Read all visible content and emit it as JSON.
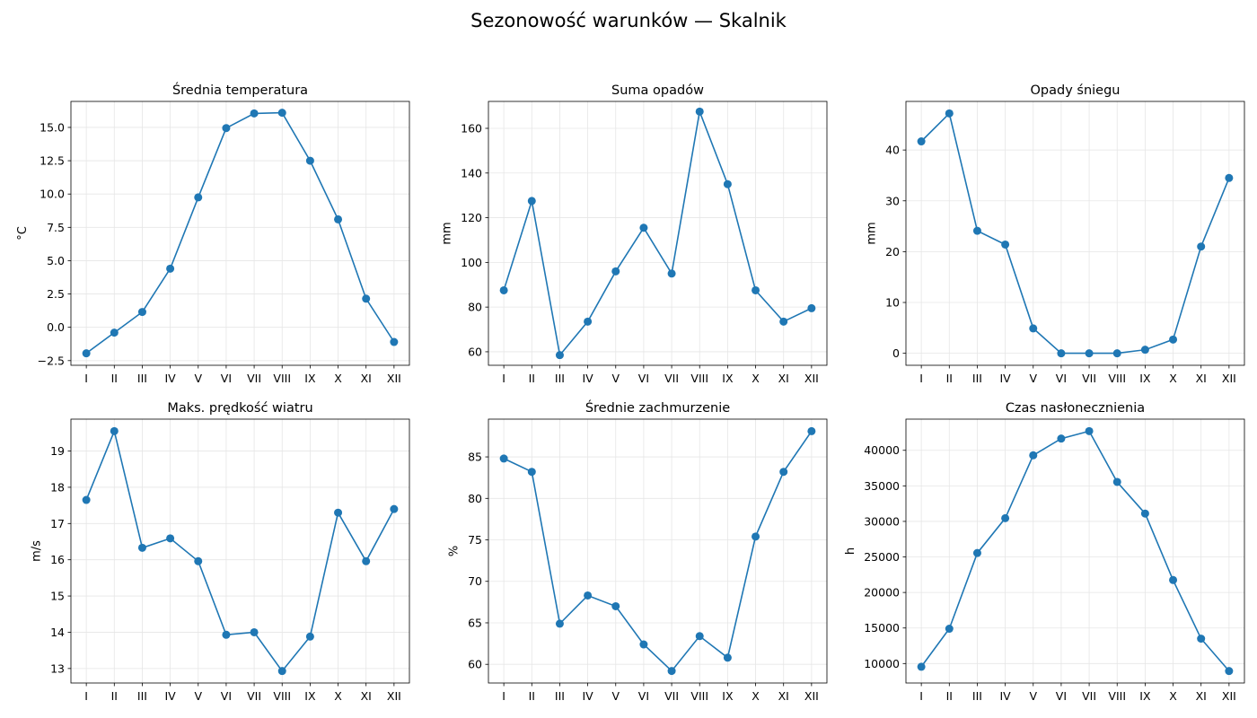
{
  "figure": {
    "title": "Sezonowość warunków — Skalnik"
  },
  "style": {
    "line_color": "#1f77b4",
    "grid_color": "#e6e6e6"
  },
  "chart_data": [
    {
      "type": "line",
      "title": "Średnia temperatura",
      "xlabel": "",
      "ylabel": "°C",
      "categories": [
        "I",
        "II",
        "III",
        "IV",
        "V",
        "VI",
        "VII",
        "VIII",
        "IX",
        "X",
        "XI",
        "XII"
      ],
      "values": [
        -1.95,
        -0.4,
        1.15,
        4.4,
        9.75,
        14.95,
        16.05,
        16.1,
        12.5,
        8.1,
        2.15,
        -1.1
      ],
      "ylim": [
        -2.85,
        16.95
      ],
      "yticks": [
        -2.5,
        0.0,
        2.5,
        5.0,
        7.5,
        10.0,
        12.5,
        15.0
      ],
      "ytick_labels": [
        "−2.5",
        "0.0",
        "2.5",
        "5.0",
        "7.5",
        "10.0",
        "12.5",
        "15.0"
      ],
      "grid": true
    },
    {
      "type": "line",
      "title": "Suma opadów",
      "xlabel": "",
      "ylabel": "mm",
      "categories": [
        "I",
        "II",
        "III",
        "IV",
        "V",
        "VI",
        "VII",
        "VIII",
        "IX",
        "X",
        "XI",
        "XII"
      ],
      "values": [
        87.5,
        127.5,
        58.5,
        73.5,
        96.0,
        115.5,
        95.0,
        167.5,
        135.0,
        87.5,
        73.5,
        79.5
      ],
      "ylim": [
        53.95,
        172.05
      ],
      "yticks": [
        60,
        80,
        100,
        120,
        140,
        160
      ],
      "ytick_labels": [
        "60",
        "80",
        "100",
        "120",
        "140",
        "160"
      ],
      "grid": true
    },
    {
      "type": "line",
      "title": "Opady śniegu",
      "xlabel": "",
      "ylabel": "mm",
      "categories": [
        "I",
        "II",
        "III",
        "IV",
        "V",
        "VI",
        "VII",
        "VIII",
        "IX",
        "X",
        "XI",
        "XII"
      ],
      "values": [
        41.7,
        47.2,
        24.1,
        21.4,
        4.9,
        0.0,
        0.0,
        0.0,
        0.7,
        2.7,
        21.0,
        34.5
      ],
      "ylim": [
        -2.36,
        49.56
      ],
      "yticks": [
        0,
        10,
        20,
        30,
        40
      ],
      "ytick_labels": [
        "0",
        "10",
        "20",
        "30",
        "40"
      ],
      "grid": true
    },
    {
      "type": "line",
      "title": "Maks. prędkość wiatru",
      "xlabel": "",
      "ylabel": "m/s",
      "categories": [
        "I",
        "II",
        "III",
        "IV",
        "V",
        "VI",
        "VII",
        "VIII",
        "IX",
        "X",
        "XI",
        "XII"
      ],
      "values": [
        17.65,
        19.55,
        16.33,
        16.59,
        15.96,
        13.93,
        14.0,
        12.93,
        13.88,
        17.3,
        15.96,
        17.4
      ],
      "ylim": [
        12.6,
        19.88
      ],
      "yticks": [
        13,
        14,
        15,
        16,
        17,
        18,
        19
      ],
      "ytick_labels": [
        "13",
        "14",
        "15",
        "16",
        "17",
        "18",
        "19"
      ],
      "grid": true
    },
    {
      "type": "line",
      "title": "Średnie zachmurzenie",
      "xlabel": "",
      "ylabel": "%",
      "categories": [
        "I",
        "II",
        "III",
        "IV",
        "V",
        "VI",
        "VII",
        "VIII",
        "IX",
        "X",
        "XI",
        "XII"
      ],
      "values": [
        84.8,
        83.2,
        64.9,
        68.3,
        67.0,
        62.4,
        59.2,
        63.4,
        60.8,
        75.4,
        83.2,
        88.1
      ],
      "ylim": [
        57.75,
        89.55
      ],
      "yticks": [
        60,
        65,
        70,
        75,
        80,
        85
      ],
      "ytick_labels": [
        "60",
        "65",
        "70",
        "75",
        "80",
        "85"
      ],
      "grid": true
    },
    {
      "type": "line",
      "title": "Czas nasłonecznienia",
      "xlabel": "",
      "ylabel": "h",
      "categories": [
        "I",
        "II",
        "III",
        "IV",
        "V",
        "VI",
        "VII",
        "VIII",
        "IX",
        "X",
        "XI",
        "XII"
      ],
      "values": [
        9550,
        14900,
        25550,
        30450,
        39300,
        41650,
        42700,
        35550,
        31100,
        21750,
        13500,
        8950
      ],
      "ylim": [
        7262.5,
        44387.5
      ],
      "yticks": [
        10000,
        15000,
        20000,
        25000,
        30000,
        35000,
        40000
      ],
      "ytick_labels": [
        "10000",
        "15000",
        "20000",
        "25000",
        "30000",
        "35000",
        "40000"
      ],
      "grid": true
    }
  ]
}
